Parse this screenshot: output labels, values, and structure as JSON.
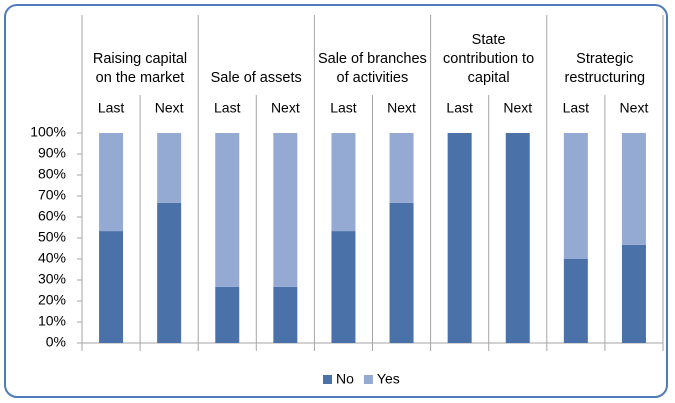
{
  "chart_data": {
    "type": "stacked_bar",
    "groups": [
      "Raising capital on the market",
      "Sale of assets",
      "Sale of branches of activities",
      "State contribution to capital",
      "Strategic restructuring"
    ],
    "categories": [
      "Last",
      "Next",
      "Last",
      "Next",
      "Last",
      "Next",
      "Last",
      "Next",
      "Last",
      "Next"
    ],
    "series": [
      {
        "name": "No",
        "color": "#4a72a8",
        "values": [
          53.3,
          66.7,
          26.7,
          26.7,
          53.3,
          66.7,
          100,
          100,
          40,
          46.7
        ]
      },
      {
        "name": "Yes",
        "color": "#94aad3",
        "values": [
          46.7,
          33.3,
          73.3,
          73.3,
          46.7,
          33.3,
          0,
          0,
          60,
          53.3
        ]
      }
    ],
    "ylim": [
      0,
      100
    ],
    "yticks": [
      {
        "value": 0,
        "label": "0%"
      },
      {
        "value": 10,
        "label": "10%"
      },
      {
        "value": 20,
        "label": "20%"
      },
      {
        "value": 30,
        "label": "30%"
      },
      {
        "value": 40,
        "label": "40%"
      },
      {
        "value": 50,
        "label": "50%"
      },
      {
        "value": 60,
        "label": "60%"
      },
      {
        "value": 70,
        "label": "70%"
      },
      {
        "value": 80,
        "label": "80%"
      },
      {
        "value": 90,
        "label": "90%"
      },
      {
        "value": 100,
        "label": "100%"
      }
    ],
    "legend": "bottom"
  }
}
